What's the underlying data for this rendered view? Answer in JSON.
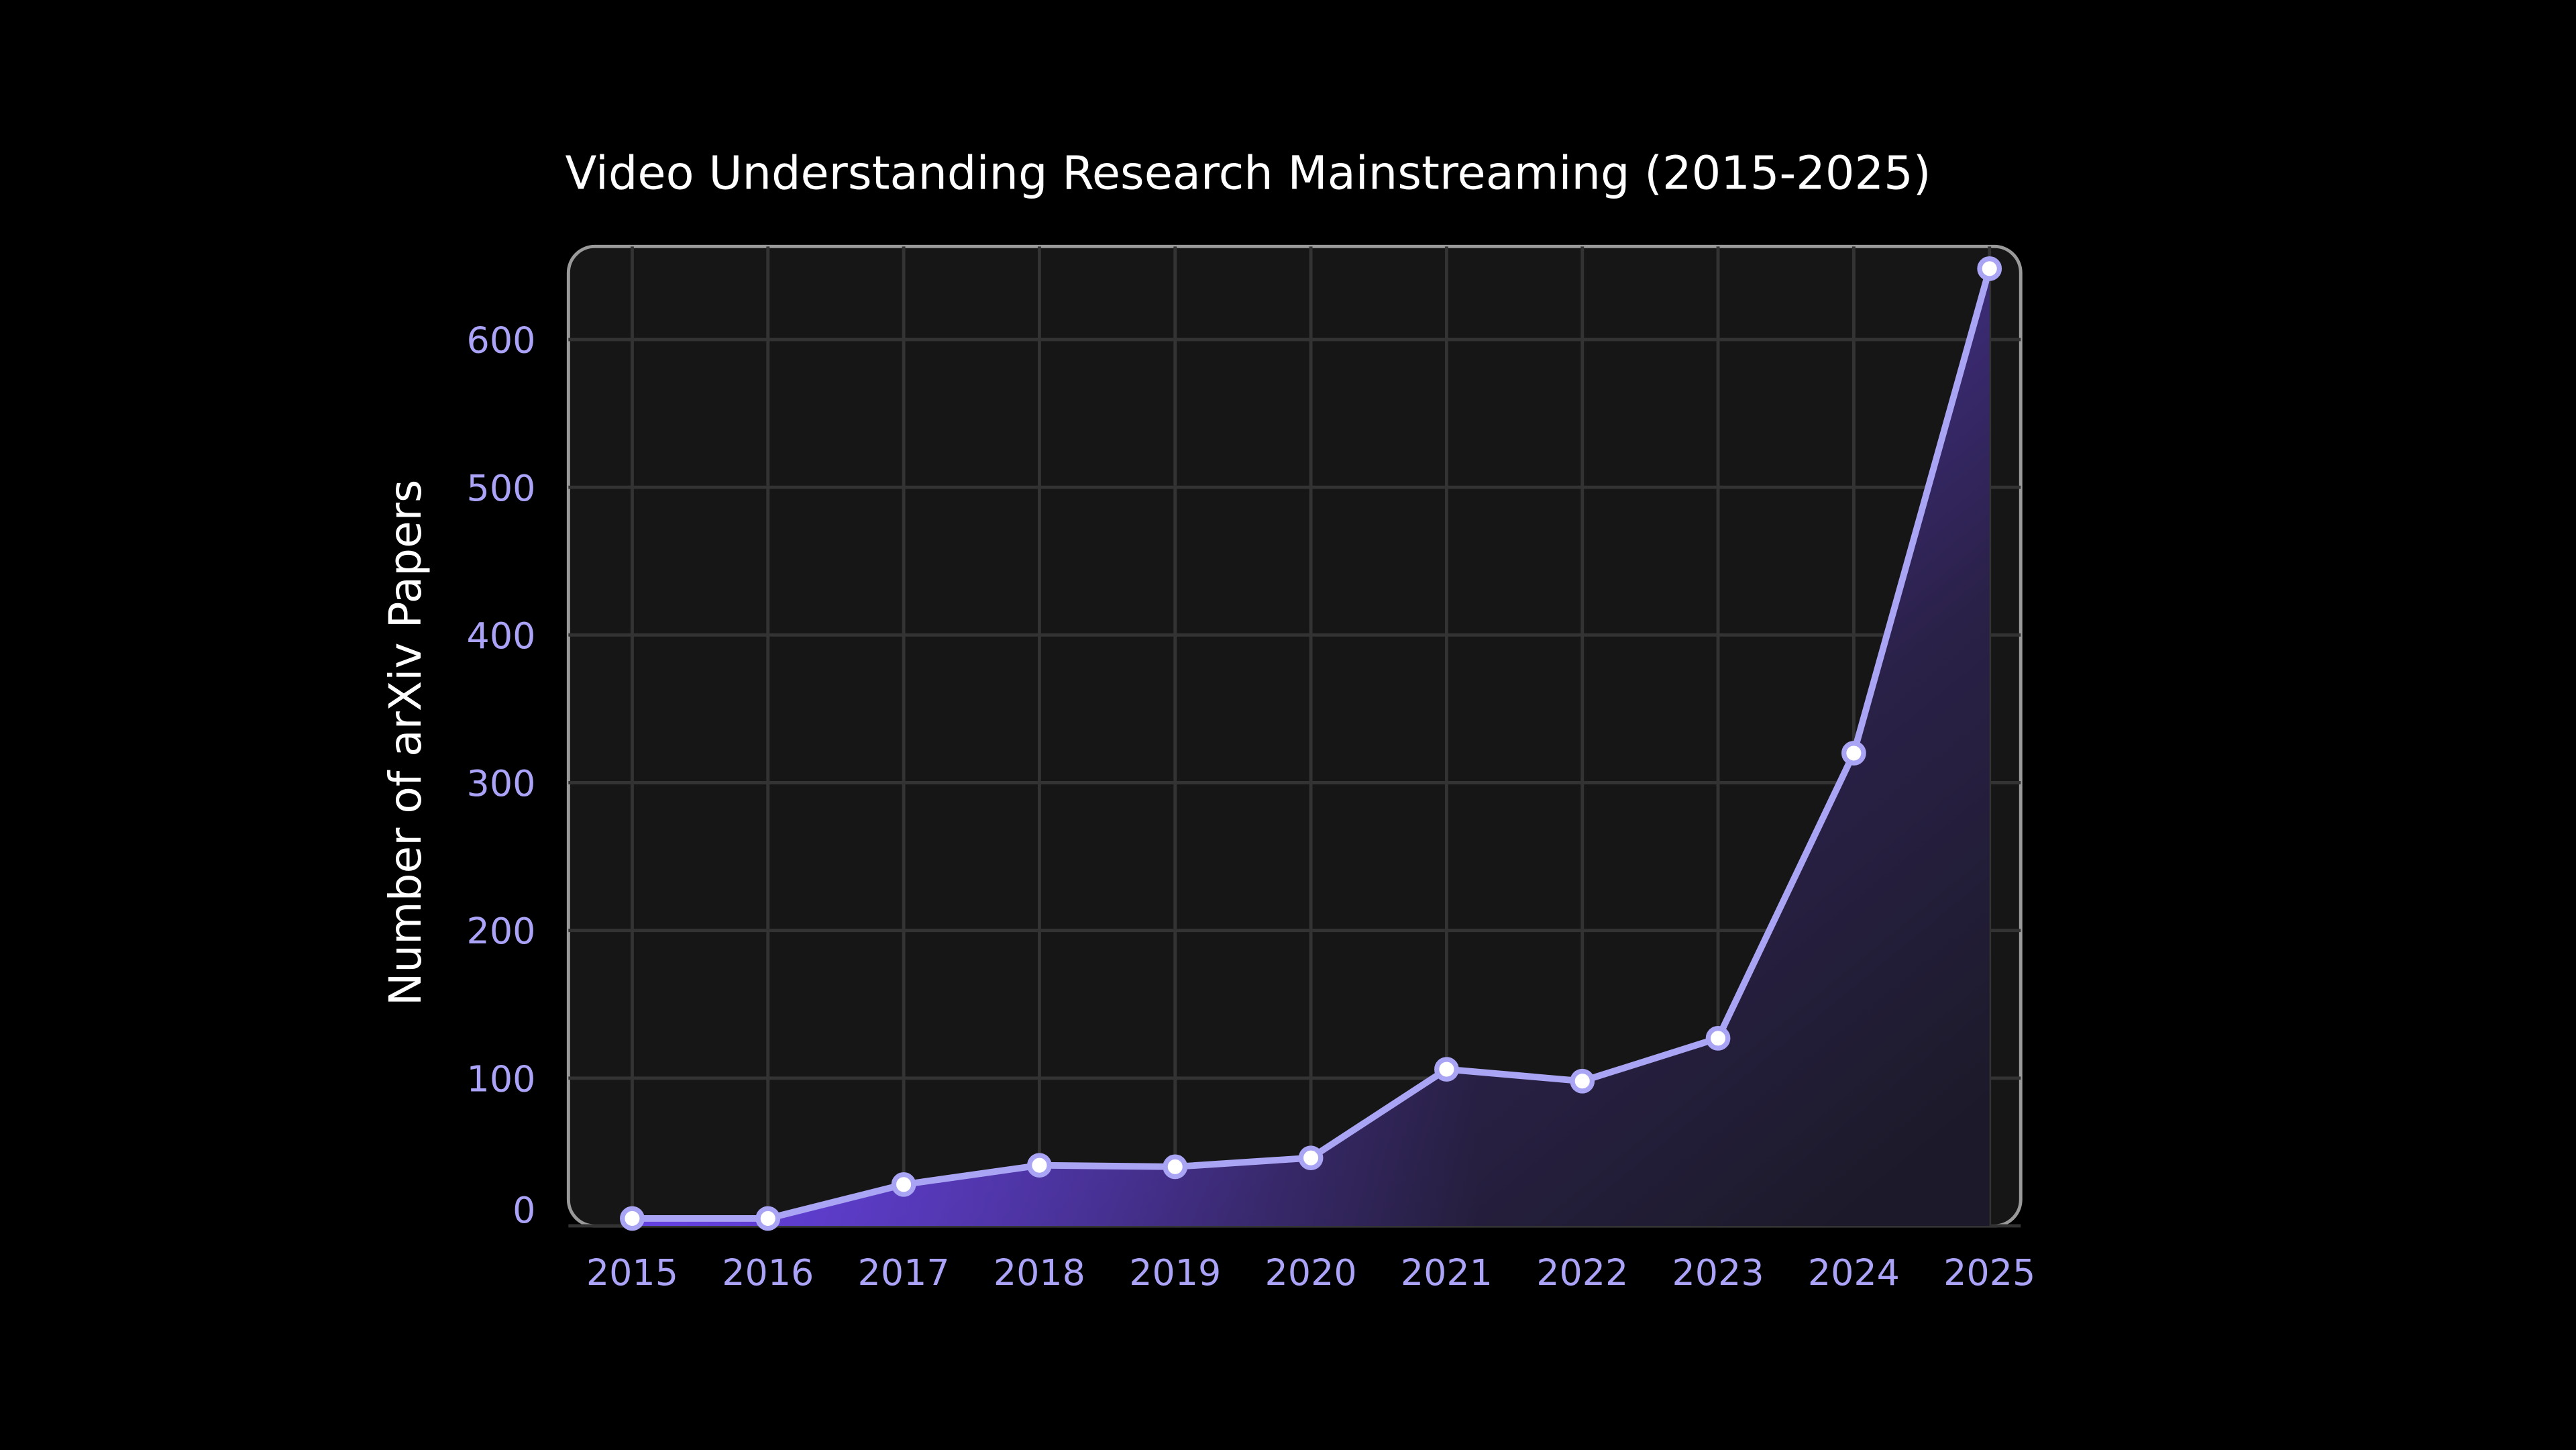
{
  "chart_data": {
    "type": "area",
    "title": "Video Understanding Research Mainstreaming (2015-2025)",
    "y_label": "Number of arXiv Papers",
    "x": [
      2015,
      2016,
      2017,
      2018,
      2019,
      2020,
      2021,
      2022,
      2023,
      2024,
      2025
    ],
    "values": [
      5,
      5,
      28,
      41,
      40,
      46,
      106,
      98,
      127,
      320,
      648
    ],
    "color": "#aaa4f5",
    "xlim": [
      2014.53,
      2025.23
    ],
    "xticks": [
      2015,
      2016,
      2017,
      2018,
      2019,
      2020,
      2021,
      2022,
      2023,
      2024,
      2025
    ],
    "ylim": [
      0,
      663
    ],
    "yticks": [
      0,
      100,
      200,
      300,
      400,
      500,
      600
    ],
    "grid": true
  }
}
